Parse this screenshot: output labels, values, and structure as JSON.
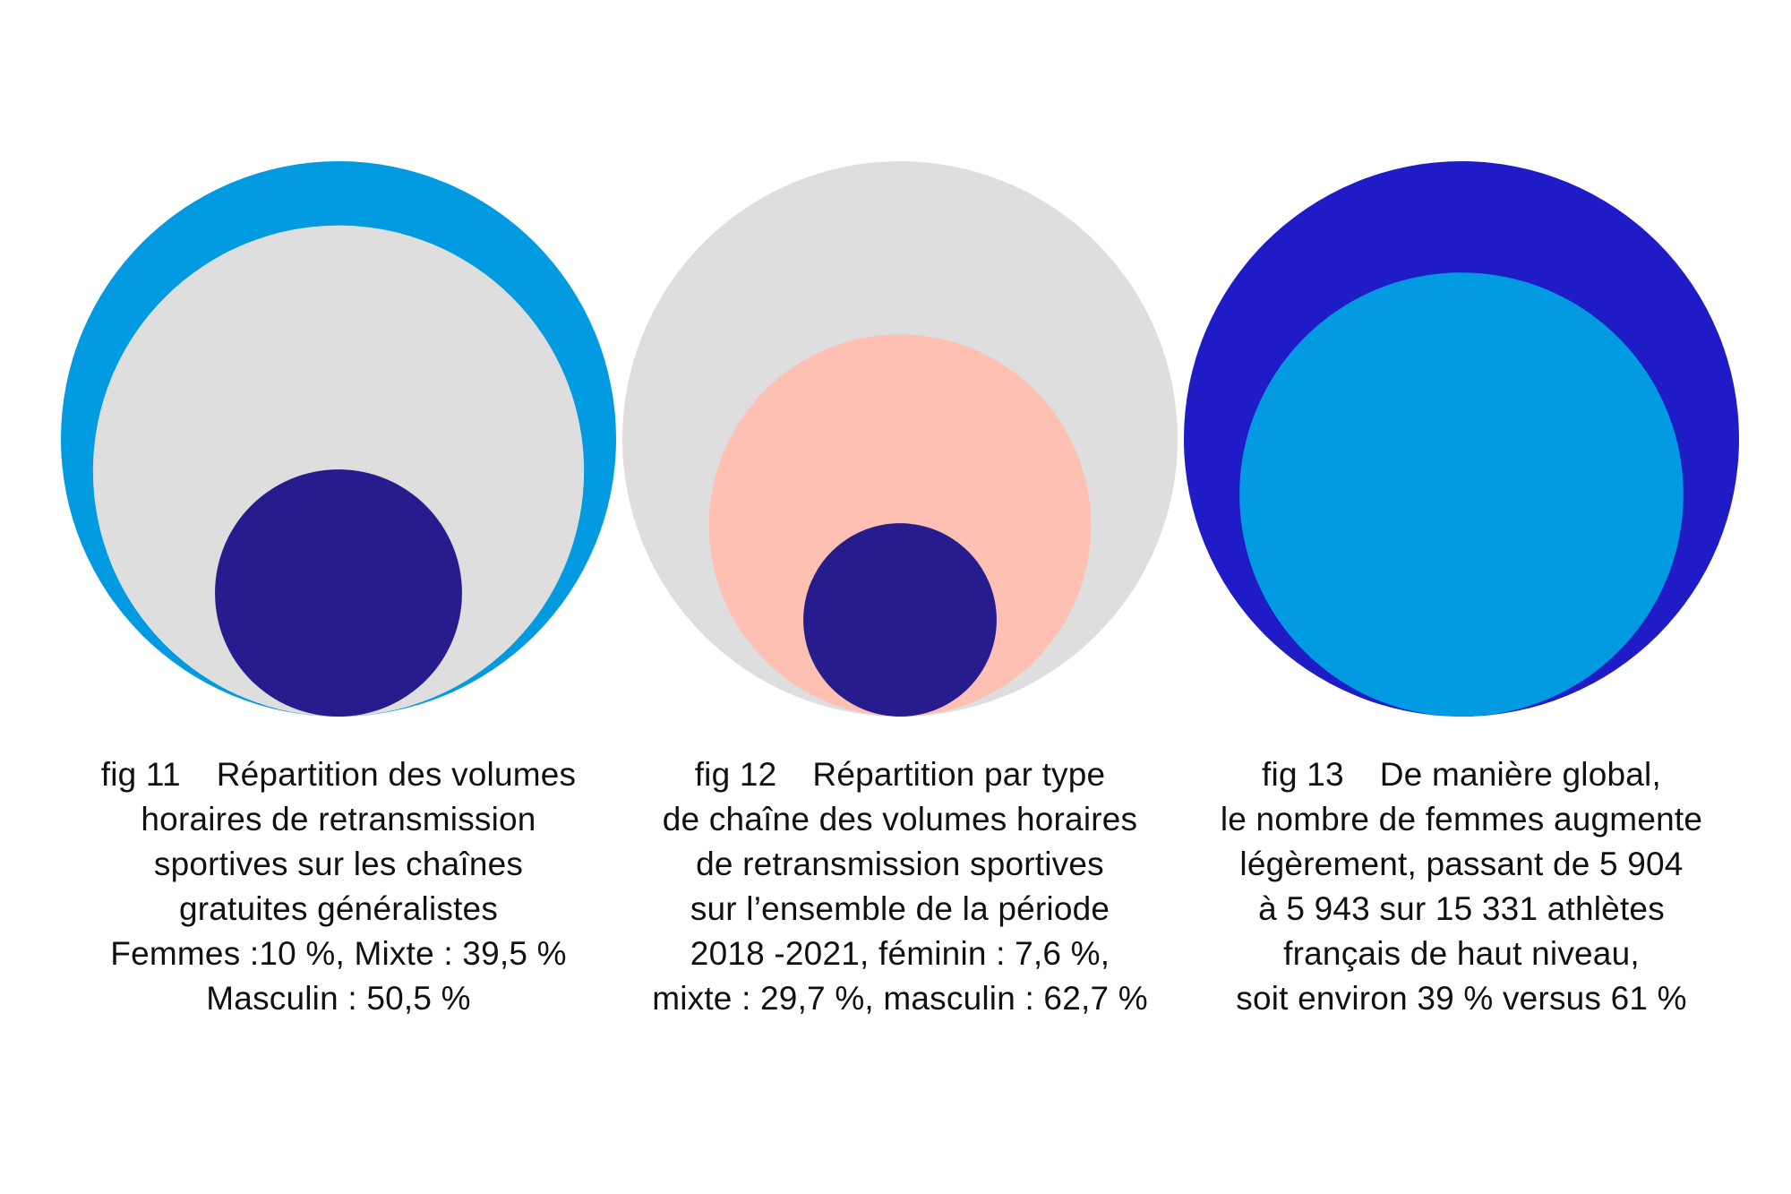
{
  "chart_data": [
    {
      "type": "nested-circles",
      "circles": [
        {
          "label": "Masculin",
          "value": 50.5,
          "color": "#029AE0"
        },
        {
          "label": "Mixte",
          "value": 39.5,
          "color": "#DEDEDE"
        },
        {
          "label": "Femmes",
          "value": 10,
          "color": "#271C8E"
        }
      ],
      "caption": {
        "fig": "fig 11",
        "lines": [
          "Répartition  des volumes",
          "horaires de retransmission",
          "sportives sur les chaînes",
          "gratuites généralistes",
          "Femmes :10 %, Mixte : 39,5 %",
          "Masculin : 50,5 %"
        ]
      }
    },
    {
      "type": "nested-circles",
      "circles": [
        {
          "label": "masculin",
          "value": 62.7,
          "color": "#DEDEDE"
        },
        {
          "label": "mixte",
          "value": 29.7,
          "color": "#FDC0B3"
        },
        {
          "label": "féminin",
          "value": 7.6,
          "color": "#271C8E"
        }
      ],
      "caption": {
        "fig": "fig 12",
        "lines": [
          "Répartition par type",
          "de chaîne des volumes horaires",
          "de retransmission sportives",
          "sur l’ensemble de la période",
          "2018 -2021, féminin : 7,6 %,",
          "mixte : 29,7 %, masculin : 62,7 %"
        ]
      }
    },
    {
      "type": "nested-circles",
      "circles": [
        {
          "label": "versus",
          "value": 61,
          "color": "#1F1BC7"
        },
        {
          "label": "femmes",
          "value": 39,
          "color": "#029AE0"
        }
      ],
      "caption": {
        "fig": "fig 13",
        "lines": [
          "De manière global,",
          "le nombre de femmes augmente",
          "légèrement, passant de 5 904",
          "à 5 943 sur 15 331 athlètes",
          "français de haut niveau,",
          "soit environ 39 % versus 61 %"
        ]
      }
    }
  ]
}
